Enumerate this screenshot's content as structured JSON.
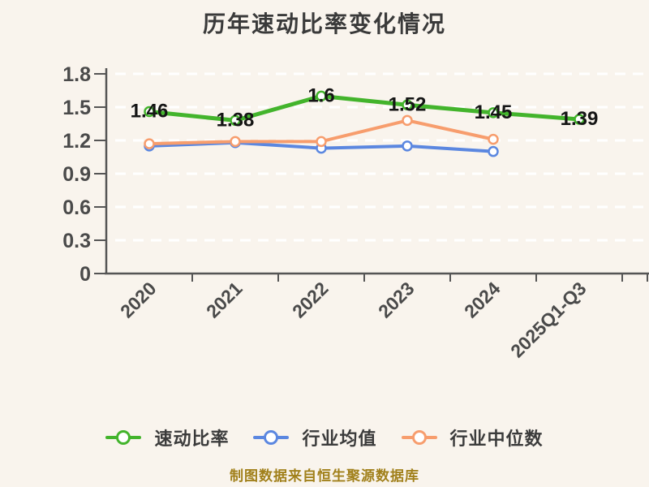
{
  "title": "历年速动比率变化情况",
  "footer": "制图数据来自恒生聚源数据库",
  "colors": {
    "green": "#43b42c",
    "blue": "#5b87e0",
    "orange": "#f79d6d",
    "background": "#f9f4ed",
    "grid": "#ffffff",
    "axis": "#555555",
    "tick_label": "#4a4a4a",
    "data_label": "#151515",
    "title_text": "#3a3a3a",
    "footer_text": "#a1801b"
  },
  "chart_data": {
    "type": "line",
    "title": "历年速动比率变化情况",
    "categories": [
      "2020",
      "2021",
      "2022",
      "2023",
      "2024",
      "2025Q1-Q3"
    ],
    "series": [
      {
        "id": "industry-average",
        "name": "行业均值",
        "color_key": "blue",
        "values": [
          1.15,
          1.18,
          1.13,
          1.15,
          1.1
        ],
        "labeled": false
      },
      {
        "id": "industry-median",
        "name": "行业中位数",
        "color_key": "orange",
        "values": [
          1.17,
          1.19,
          1.19,
          1.38,
          1.21
        ],
        "labeled": false
      },
      {
        "id": "quick-ratio",
        "name": "速动比率",
        "color_key": "green",
        "values": [
          1.46,
          1.38,
          1.6,
          1.52,
          1.45,
          1.39
        ],
        "labels": [
          "1.46",
          "1.38",
          "1.6",
          "1.52",
          "1.45",
          "1.39"
        ],
        "labeled": true
      }
    ],
    "ylim": [
      0,
      1.8
    ],
    "yticks": [
      0,
      0.3,
      0.6,
      0.9,
      1.2,
      1.5,
      1.8
    ],
    "ytick_labels": [
      "0",
      "0.3",
      "0.6",
      "0.9",
      "1.2",
      "1.5",
      "1.8"
    ],
    "grid": "horizontal-dashed",
    "legend_position": "bottom",
    "legend_order": [
      "quick-ratio",
      "industry-average",
      "industry-median"
    ]
  }
}
